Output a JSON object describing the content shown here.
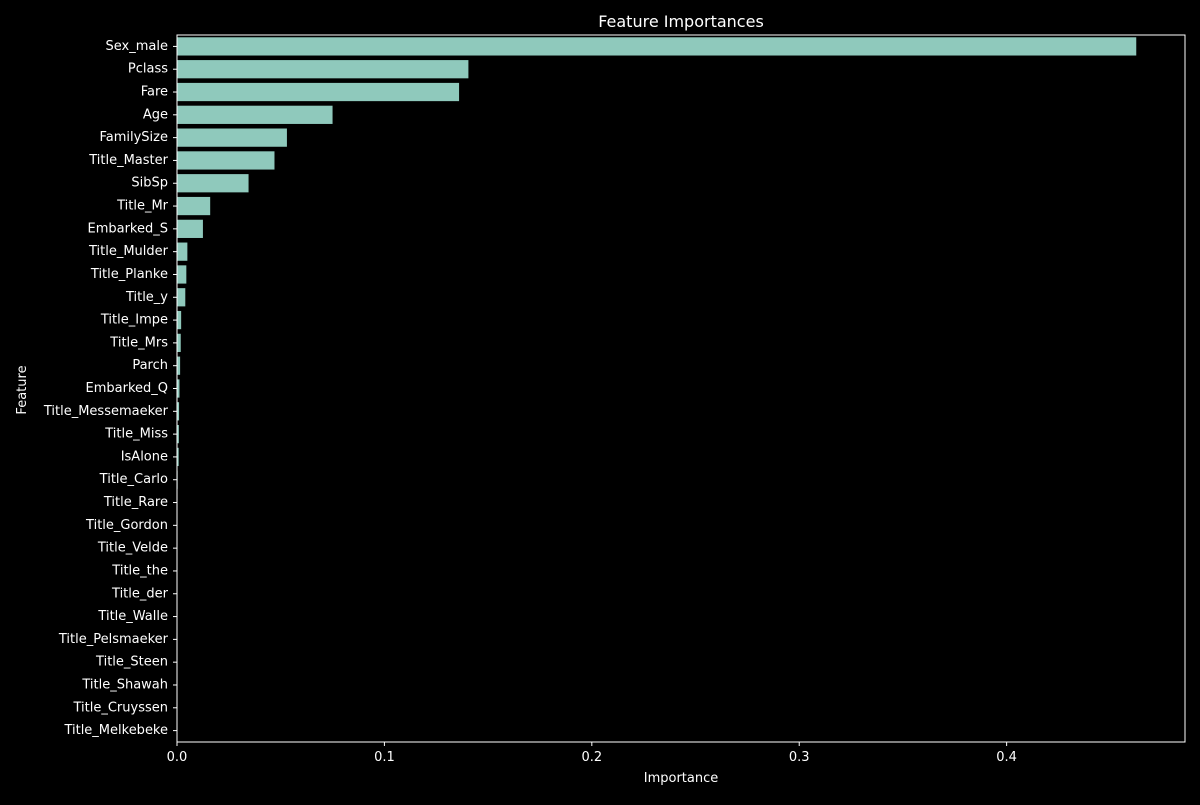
{
  "chart_data": {
    "type": "bar",
    "orientation": "horizontal",
    "title": "Feature Importances",
    "xlabel": "Importance",
    "ylabel": "Feature",
    "xlim": [
      0,
      0.486
    ],
    "xticks": [
      0.0,
      0.1,
      0.2,
      0.3,
      0.4
    ],
    "xtick_labels": [
      "0.0",
      "0.1",
      "0.2",
      "0.3",
      "0.4"
    ],
    "grid": false,
    "categories": [
      "Sex_male",
      "Pclass",
      "Fare",
      "Age",
      "FamilySize",
      "Title_Master",
      "SibSp",
      "Title_Mr",
      "Embarked_S",
      "Title_Mulder",
      "Title_Planke",
      "Title_y",
      "Title_Impe",
      "Title_Mrs",
      "Parch",
      "Embarked_Q",
      "Title_Messemaeker",
      "Title_Miss",
      "IsAlone",
      "Title_Carlo",
      "Title_Rare",
      "Title_Gordon",
      "Title_Velde",
      "Title_the",
      "Title_der",
      "Title_Walle",
      "Title_Pelsmaeker",
      "Title_Steen",
      "Title_Shawah",
      "Title_Cruyssen",
      "Title_Melkebeke"
    ],
    "values": [
      0.4625,
      0.1405,
      0.136,
      0.075,
      0.053,
      0.047,
      0.0345,
      0.016,
      0.0125,
      0.005,
      0.0045,
      0.004,
      0.002,
      0.0018,
      0.0015,
      0.0012,
      0.001,
      0.0009,
      0.0008,
      0.0003,
      0.0002,
      0.0002,
      0.0001,
      0.0001,
      0.0001,
      0.0001,
      0.0001,
      0.0001,
      0.0001,
      0.0001,
      0.0001
    ],
    "colors": {
      "bar": "#8fc9bc",
      "background": "#000000",
      "axes": "#ffffff",
      "text": "#ffffff"
    }
  }
}
